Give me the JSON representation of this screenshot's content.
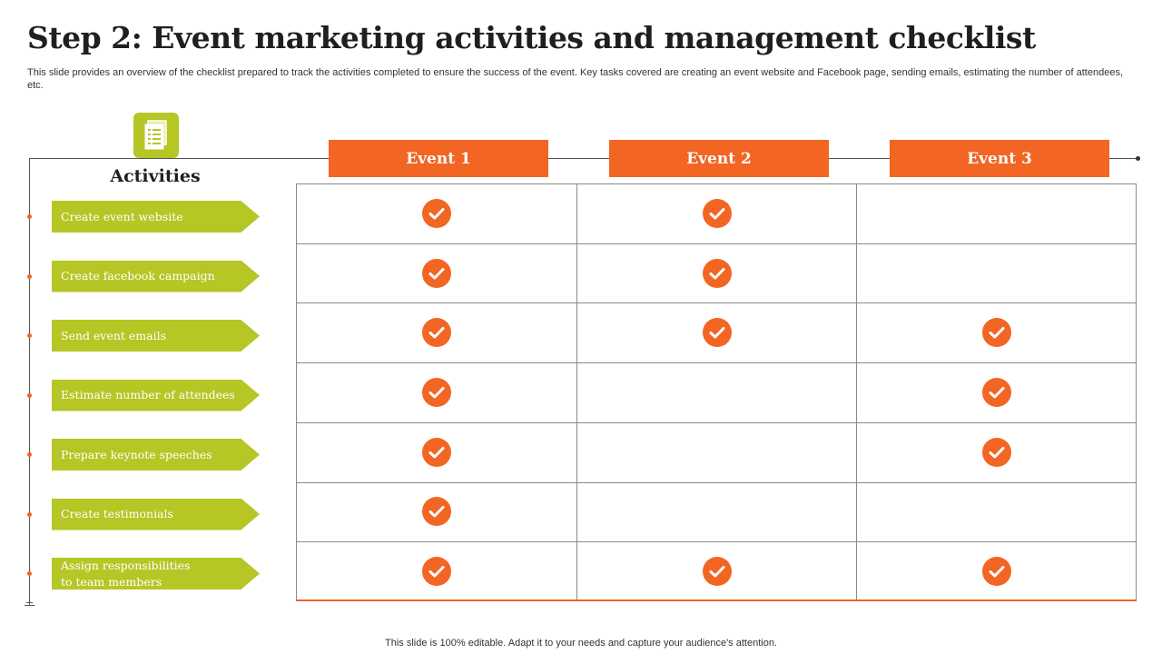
{
  "slide": {
    "title": "Step 2: Event marketing activities and management checklist",
    "subtitle": "This slide provides an overview of the checklist prepared to track the activities completed to ensure the success of the event. Key tasks covered are creating an event website and Facebook page, sending emails, estimating the number of attendees, etc.",
    "footer": "This slide is 100% editable. Adapt it to your needs and capture your audience's attention."
  },
  "activities_heading": "Activities",
  "header_icon": "checklist-document-icon",
  "events": [
    "Event 1",
    "Event 2",
    "Event 3"
  ],
  "activities": [
    {
      "label": "Create event website",
      "checks": [
        true,
        true,
        false
      ]
    },
    {
      "label": "Create facebook campaign",
      "checks": [
        true,
        true,
        false
      ]
    },
    {
      "label": "Send event emails",
      "checks": [
        true,
        true,
        true
      ]
    },
    {
      "label": "Estimate number of attendees",
      "checks": [
        true,
        false,
        true
      ]
    },
    {
      "label": "Prepare keynote speeches",
      "checks": [
        true,
        false,
        true
      ]
    },
    {
      "label": "Create testimonials",
      "checks": [
        true,
        false,
        false
      ]
    },
    {
      "label": "Assign responsibilities\nto team members",
      "checks": [
        true,
        true,
        true
      ]
    }
  ],
  "colors": {
    "accent_orange": "#f26522",
    "accent_green": "#b5c625",
    "grid_line": "#8a8a8a"
  }
}
